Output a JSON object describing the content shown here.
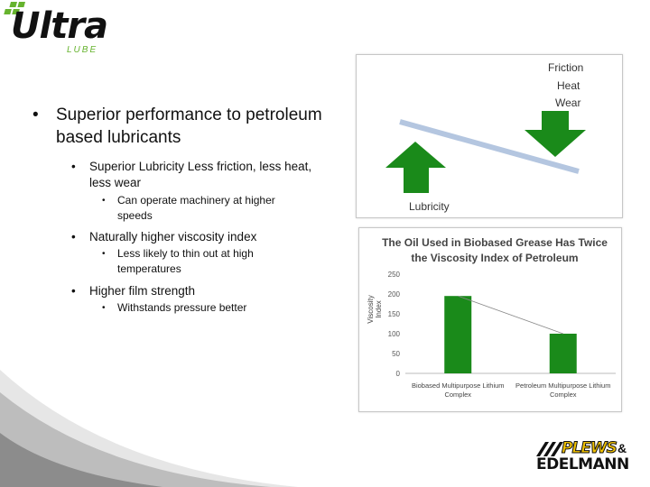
{
  "logo": {
    "word": "Ultra",
    "sub": "LUBE",
    "brand_color": "#66b32e"
  },
  "bullets": {
    "dot": "•",
    "main": "Superior performance to petroleum based lubricants",
    "items": [
      {
        "text": "Superior Lubricity Less friction, less heat, less wear",
        "sub": "Can operate machinery at higher speeds"
      },
      {
        "text": "Naturally higher viscosity index",
        "sub": "Less likely to thin out at high temperatures"
      },
      {
        "text": "Higher film strength",
        "sub": "Withstands pressure better"
      }
    ]
  },
  "diagram": {
    "top_labels": [
      "Friction",
      "Heat",
      "Wear"
    ],
    "bottom_label": "Lubricity",
    "arrow_color": "#1a8a1a",
    "line_color": "#b4c6e0"
  },
  "chart_data": {
    "type": "bar",
    "title": "The Oil Used in Biobased Grease Has Twice the Viscosity Index  of Petroleum",
    "ylabel": "Viscosity Index",
    "categories": [
      "Biobased Multipurpose Lithium Complex",
      "Petroleum Multipurpose Lithium Complex"
    ],
    "values": [
      195,
      100
    ],
    "ylim": [
      0,
      250
    ],
    "yticks": [
      "0",
      "50",
      "100",
      "150",
      "200",
      "250"
    ],
    "bar_color": "#1a8a1a",
    "legend": "none"
  },
  "footer_logo": {
    "line1": "PLEWS",
    "amp": "&",
    "line2": "EDELMANN",
    "accent": "#f2c200"
  }
}
